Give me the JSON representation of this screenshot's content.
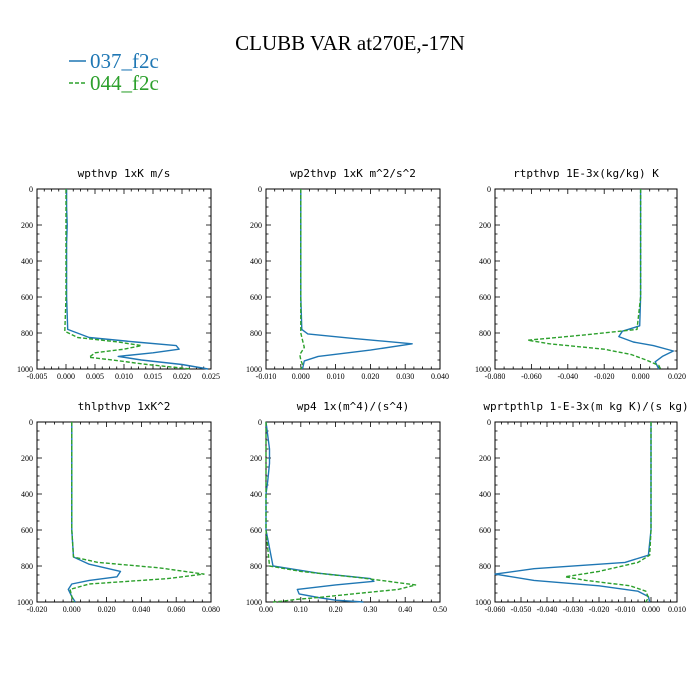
{
  "title": "CLUBB VAR at270E,-17N",
  "legend": [
    {
      "label": "037_f2c",
      "color": "#1f77b4",
      "dash": "solid"
    },
    {
      "label": "044_f2c",
      "color": "#2ca02c",
      "dash": "dashed"
    }
  ],
  "chart_data": [
    {
      "type": "line",
      "title": "wpthvp  1xK m/s",
      "xlim": [
        -0.005,
        0.025
      ],
      "ylim": [
        1000,
        0
      ],
      "xticks": [
        "-0.005",
        "0.000",
        "0.005",
        "0.010",
        "0.015",
        "0.020",
        "0.025"
      ],
      "xtick_values": [
        -0.005,
        0.0,
        0.005,
        0.01,
        0.015,
        0.02,
        0.025
      ],
      "yticks": [
        "0",
        "200",
        "400",
        "600",
        "800",
        "1000"
      ],
      "ytick_values": [
        0,
        200,
        400,
        600,
        800,
        1000
      ],
      "series": [
        {
          "name": "037_f2c",
          "x": [
            0.0001,
            0.0001,
            0.0002,
            0.0001,
            0.0001,
            0.0001,
            0.0003,
            0.004,
            0.012,
            0.019,
            0.0195,
            0.015,
            0.009,
            0.013,
            0.02,
            0.0245
          ],
          "y": [
            0,
            100,
            200,
            300,
            400,
            600,
            780,
            825,
            850,
            870,
            890,
            910,
            930,
            950,
            975,
            1000
          ]
        },
        {
          "name": "044_f2c",
          "x": [
            0.0,
            0.0,
            0.0,
            0.0,
            0.0,
            0.0,
            -0.0002,
            0.002,
            0.009,
            0.013,
            0.01,
            0.005,
            0.004,
            0.008,
            0.014,
            0.0215
          ],
          "y": [
            0,
            100,
            200,
            300,
            400,
            600,
            790,
            825,
            850,
            870,
            890,
            910,
            935,
            950,
            975,
            1000
          ]
        }
      ]
    },
    {
      "type": "line",
      "title": "wp2thvp  1xK m^2/s^2",
      "xlim": [
        -0.01,
        0.04
      ],
      "ylim": [
        1000,
        0
      ],
      "xticks": [
        "-0.010",
        "0.000",
        "0.010",
        "0.020",
        "0.030",
        "0.040"
      ],
      "xtick_values": [
        -0.01,
        0.0,
        0.01,
        0.02,
        0.03,
        0.04
      ],
      "yticks": [
        "0",
        "200",
        "400",
        "600",
        "800",
        "1000"
      ],
      "ytick_values": [
        0,
        200,
        400,
        600,
        800,
        1000
      ],
      "series": [
        {
          "name": "037_f2c",
          "x": [
            0.0,
            0.0,
            0.0,
            0.0,
            0.0003,
            0.002,
            0.015,
            0.032,
            0.02,
            0.005,
            0.001,
            0.0005
          ],
          "y": [
            0,
            200,
            400,
            600,
            780,
            805,
            830,
            860,
            895,
            930,
            955,
            1000
          ]
        },
        {
          "name": "044_f2c",
          "x": [
            0.0,
            0.0,
            0.0,
            0.0,
            0.0,
            0.0005,
            0.001,
            -0.0003,
            0.0,
            0.0005,
            0.0
          ],
          "y": [
            0,
            200,
            400,
            600,
            800,
            840,
            880,
            920,
            950,
            975,
            1000
          ]
        }
      ]
    },
    {
      "type": "line",
      "title": "rtpthvp  1E-3x(kg/kg) K",
      "xlim": [
        -0.08,
        0.02
      ],
      "ylim": [
        1000,
        0
      ],
      "xticks": [
        "-0.080",
        "-0.060",
        "-0.040",
        "-0.020",
        "0.000",
        "0.020"
      ],
      "xtick_values": [
        -0.08,
        -0.06,
        -0.04,
        -0.02,
        0.0,
        0.02
      ],
      "yticks": [
        "0",
        "200",
        "400",
        "600",
        "800",
        "1000"
      ],
      "ytick_values": [
        0,
        200,
        400,
        600,
        800,
        1000
      ],
      "series": [
        {
          "name": "037_f2c",
          "x": [
            0.0,
            0.0,
            0.0,
            0.0,
            -0.0005,
            -0.01,
            -0.012,
            -0.004,
            0.007,
            0.018,
            0.012,
            0.008,
            0.01
          ],
          "y": [
            0,
            200,
            400,
            600,
            760,
            790,
            820,
            850,
            870,
            900,
            930,
            960,
            1000
          ]
        },
        {
          "name": "044_f2c",
          "x": [
            0.0,
            0.0,
            0.0,
            0.0,
            -0.002,
            -0.03,
            -0.062,
            -0.05,
            -0.02,
            -0.005,
            0.003,
            0.01,
            0.011
          ],
          "y": [
            0,
            200,
            400,
            600,
            780,
            810,
            840,
            860,
            890,
            920,
            950,
            980,
            1000
          ]
        }
      ]
    },
    {
      "type": "line",
      "title": "thlpthvp  1xK^2",
      "xlim": [
        -0.02,
        0.08
      ],
      "ylim": [
        1000,
        0
      ],
      "xticks": [
        "-0.020",
        "0.000",
        "0.020",
        "0.040",
        "0.060",
        "0.080"
      ],
      "xtick_values": [
        -0.02,
        0.0,
        0.02,
        0.04,
        0.06,
        0.08
      ],
      "yticks": [
        "0",
        "200",
        "400",
        "600",
        "800",
        "1000"
      ],
      "ytick_values": [
        0,
        200,
        400,
        600,
        800,
        1000
      ],
      "series": [
        {
          "name": "037_f2c",
          "x": [
            0.0,
            0.0,
            0.0,
            0.0,
            0.001,
            0.01,
            0.028,
            0.026,
            0.01,
            0.0,
            -0.002,
            0.0,
            0.002
          ],
          "y": [
            0,
            200,
            400,
            600,
            750,
            790,
            830,
            860,
            880,
            900,
            930,
            970,
            1000
          ]
        },
        {
          "name": "044_f2c",
          "x": [
            0.0,
            0.0,
            0.0,
            0.0,
            0.001,
            0.015,
            0.05,
            0.076,
            0.055,
            0.01,
            -0.001,
            0.0,
            0.001
          ],
          "y": [
            0,
            200,
            400,
            600,
            750,
            780,
            810,
            845,
            870,
            900,
            930,
            970,
            1000
          ]
        }
      ]
    },
    {
      "type": "line",
      "title": "wp4  1x(m^4)/(s^4)",
      "xlim": [
        0.0,
        0.5
      ],
      "ylim": [
        1000,
        0
      ],
      "xticks": [
        "0.00",
        "0.10",
        "0.20",
        "0.30",
        "0.40",
        "0.50"
      ],
      "xtick_values": [
        0.0,
        0.1,
        0.2,
        0.3,
        0.4,
        0.5
      ],
      "yticks": [
        "0",
        "200",
        "400",
        "600",
        "800",
        "1000"
      ],
      "ytick_values": [
        0,
        200,
        400,
        600,
        800,
        1000
      ],
      "series": [
        {
          "name": "037_f2c",
          "x": [
            0.0,
            0.01,
            0.01,
            0.005,
            0.0,
            0.0,
            0.02,
            0.15,
            0.3,
            0.31,
            0.2,
            0.09,
            0.095,
            0.15,
            0.2,
            0.28
          ],
          "y": [
            0,
            150,
            230,
            330,
            400,
            600,
            800,
            840,
            870,
            885,
            905,
            930,
            955,
            975,
            990,
            1000
          ]
        },
        {
          "name": "044_f2c",
          "x": [
            0.0,
            0.0,
            0.0,
            0.0,
            0.0,
            0.0,
            0.01,
            0.1,
            0.27,
            0.43,
            0.38,
            0.25,
            0.15,
            0.09,
            0.05,
            0.02
          ],
          "y": [
            0,
            150,
            230,
            330,
            400,
            600,
            800,
            830,
            865,
            905,
            930,
            955,
            975,
            985,
            995,
            1000
          ]
        }
      ]
    },
    {
      "type": "line",
      "title": "wprtpthlp  1-E-3x(m kg K)/(s kg)",
      "xlim": [
        -0.06,
        0.01
      ],
      "ylim": [
        1000,
        0
      ],
      "xticks": [
        "-0.060",
        "-0.050",
        "-0.040",
        "-0.030",
        "-0.020",
        "-0.010",
        "0.000",
        "0.010"
      ],
      "xtick_values": [
        -0.06,
        -0.05,
        -0.04,
        -0.03,
        -0.02,
        -0.01,
        0.0,
        0.01
      ],
      "yticks": [
        "0",
        "200",
        "400",
        "600",
        "800",
        "1000"
      ],
      "ytick_values": [
        0,
        200,
        400,
        600,
        800,
        1000
      ],
      "series": [
        {
          "name": "037_f2c",
          "x": [
            0.0,
            0.0,
            0.0,
            0.0,
            -0.001,
            -0.01,
            -0.045,
            -0.06,
            -0.045,
            -0.02,
            -0.005,
            -0.001,
            -0.0005
          ],
          "y": [
            0,
            200,
            400,
            600,
            740,
            780,
            815,
            845,
            880,
            910,
            940,
            970,
            1000
          ]
        },
        {
          "name": "044_f2c",
          "x": [
            0.0,
            0.0,
            0.0,
            0.0,
            -0.0005,
            -0.005,
            -0.02,
            -0.033,
            -0.025,
            -0.008,
            -0.002,
            -0.001,
            -0.002
          ],
          "y": [
            0,
            200,
            400,
            600,
            740,
            780,
            830,
            860,
            880,
            910,
            940,
            975,
            1000
          ]
        }
      ]
    }
  ]
}
